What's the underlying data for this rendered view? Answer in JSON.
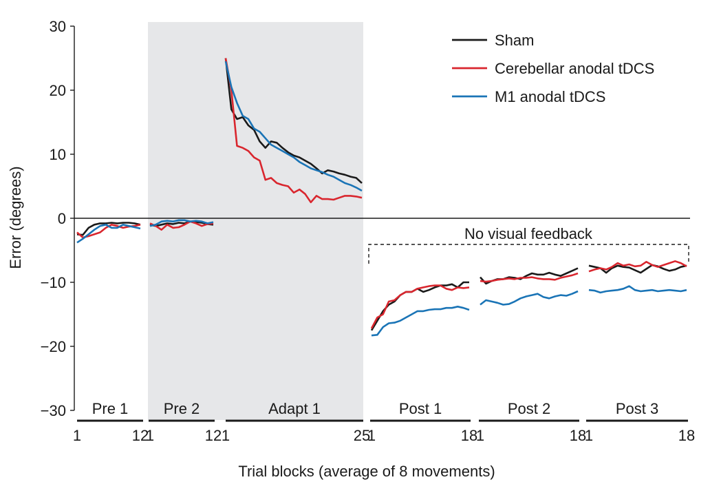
{
  "chart_data": {
    "type": "line",
    "ylabel": "Error (degrees)",
    "xlabel": "Trial blocks (average of 8 movements)",
    "ylim": [
      -30,
      30
    ],
    "yticks": [
      30,
      20,
      10,
      0,
      -10,
      -20,
      -30
    ],
    "ytick_labels": [
      "30",
      "20",
      "10",
      "0",
      "−10",
      "−20",
      "−30"
    ],
    "grid": false,
    "legend_position": "top-right",
    "annotation": "No visual feedback",
    "colors": {
      "Sham": "#1a1a1a",
      "Cerebellar anodal tDCS": "#d9262e",
      "M1 anodal tDCS": "#1a74b6",
      "shade": "#e6e7e9"
    },
    "phases": [
      {
        "name": "Pre 1",
        "blocks": 12,
        "tick_labels": [
          "1",
          "12"
        ],
        "shaded": false
      },
      {
        "name": "Pre 2",
        "blocks": 12,
        "tick_labels": [
          "1",
          "12"
        ],
        "shaded": true
      },
      {
        "name": "Adapt 1",
        "blocks": 25,
        "tick_labels": [
          "1",
          "25"
        ],
        "shaded": true
      },
      {
        "name": "Post 1",
        "blocks": 18,
        "tick_labels": [
          "1",
          "18"
        ],
        "shaded": false
      },
      {
        "name": "Post 2",
        "blocks": 18,
        "tick_labels": [
          "1",
          "18"
        ],
        "shaded": false
      },
      {
        "name": "Post 3",
        "blocks": 18,
        "tick_labels": [
          "1",
          "18"
        ],
        "shaded": false
      }
    ],
    "series": [
      {
        "name": "Sham",
        "phase_values": [
          [
            -2.5,
            -2.6,
            -1.5,
            -1.0,
            -0.8,
            -0.8,
            -0.7,
            -0.8,
            -0.7,
            -0.7,
            -0.8,
            -1.0
          ],
          [
            -1.0,
            -1.2,
            -1.0,
            -0.8,
            -0.9,
            -0.7,
            -0.8,
            -0.5,
            -0.6,
            -0.7,
            -0.9,
            -1.0
          ],
          [
            25.0,
            17.0,
            15.5,
            15.8,
            14.5,
            13.8,
            12.0,
            11.0,
            12.0,
            11.8,
            11.0,
            10.3,
            9.8,
            9.5,
            9.0,
            8.5,
            7.8,
            7.0,
            7.5,
            7.3,
            7.0,
            6.8,
            6.5,
            6.3,
            5.5
          ],
          [
            -17.5,
            -16.0,
            -14.5,
            -13.5,
            -13.0,
            -12.0,
            -11.5,
            -11.5,
            -11.0,
            -11.5,
            -11.2,
            -10.8,
            -10.5,
            -10.5,
            -10.3,
            -10.8,
            -10.0,
            -10.0
          ],
          [
            -9.2,
            -10.2,
            -9.8,
            -9.5,
            -9.5,
            -9.2,
            -9.3,
            -9.5,
            -9.0,
            -8.6,
            -8.8,
            -8.8,
            -8.5,
            -8.8,
            -9.0,
            -8.6,
            -8.2,
            -7.8
          ],
          [
            -7.4,
            -7.6,
            -7.8,
            -8.5,
            -7.8,
            -7.4,
            -7.6,
            -7.7,
            -8.1,
            -8.5,
            -7.9,
            -7.3,
            -7.5,
            -7.9,
            -8.2,
            -8.0,
            -7.6,
            -7.4
          ]
        ]
      },
      {
        "name": "Cerebellar anodal tDCS",
        "phase_values": [
          [
            -2.2,
            -3.0,
            -2.8,
            -2.5,
            -2.2,
            -1.5,
            -1.0,
            -1.2,
            -1.5,
            -1.3,
            -1.2,
            -1.0
          ],
          [
            -0.8,
            -1.2,
            -1.8,
            -1.0,
            -1.5,
            -1.4,
            -1.0,
            -0.5,
            -0.8,
            -1.2,
            -0.9,
            -0.8
          ],
          [
            25.0,
            20.0,
            11.3,
            11.0,
            10.5,
            9.5,
            9.0,
            6.0,
            6.3,
            5.5,
            5.2,
            5.0,
            4.0,
            4.5,
            3.8,
            2.5,
            3.5,
            3.0,
            3.0,
            2.9,
            3.2,
            3.5,
            3.5,
            3.4,
            3.2
          ],
          [
            -17.2,
            -15.5,
            -15.0,
            -13.0,
            -12.8,
            -12.0,
            -11.5,
            -11.5,
            -11.0,
            -10.8,
            -10.6,
            -10.5,
            -10.5,
            -11.0,
            -11.2,
            -10.8,
            -10.9,
            -10.8
          ],
          [
            -9.8,
            -9.9,
            -9.8,
            -9.6,
            -9.5,
            -9.4,
            -9.5,
            -9.3,
            -9.3,
            -9.2,
            -9.4,
            -9.5,
            -9.5,
            -9.6,
            -9.3,
            -9.1,
            -8.9,
            -8.6
          ],
          [
            -8.3,
            -8.0,
            -7.8,
            -8.0,
            -7.6,
            -7.0,
            -7.4,
            -7.2,
            -7.5,
            -7.4,
            -6.8,
            -7.3,
            -7.6,
            -7.3,
            -7.0,
            -6.7,
            -7.0,
            -7.5
          ]
        ]
      },
      {
        "name": "M1 anodal tDCS",
        "phase_values": [
          [
            -3.8,
            -3.2,
            -2.5,
            -1.8,
            -1.2,
            -1.0,
            -1.5,
            -1.5,
            -1.0,
            -1.2,
            -1.4,
            -1.6
          ],
          [
            -1.2,
            -1.0,
            -0.5,
            -0.4,
            -0.5,
            -0.3,
            -0.3,
            -0.5,
            -0.4,
            -0.5,
            -0.8,
            -0.6
          ],
          [
            24.5,
            20.5,
            18.0,
            16.0,
            15.5,
            14.0,
            13.5,
            12.5,
            11.5,
            11.0,
            10.5,
            10.0,
            9.5,
            8.8,
            8.3,
            7.8,
            7.5,
            7.2,
            6.8,
            6.5,
            6.0,
            5.5,
            5.2,
            4.8,
            4.3
          ],
          [
            -18.3,
            -18.2,
            -17.0,
            -16.4,
            -16.3,
            -16.0,
            -15.5,
            -15.0,
            -14.5,
            -14.5,
            -14.3,
            -14.2,
            -14.2,
            -14.0,
            -14.0,
            -13.8,
            -14.0,
            -14.3
          ],
          [
            -13.5,
            -12.8,
            -13.0,
            -13.2,
            -13.5,
            -13.4,
            -13.0,
            -12.5,
            -12.2,
            -12.0,
            -11.8,
            -12.3,
            -12.5,
            -12.2,
            -12.0,
            -12.1,
            -11.8,
            -11.4
          ],
          [
            -11.2,
            -11.3,
            -11.6,
            -11.4,
            -11.3,
            -11.2,
            -11.0,
            -10.6,
            -11.2,
            -11.4,
            -11.3,
            -11.2,
            -11.4,
            -11.3,
            -11.2,
            -11.3,
            -11.4,
            -11.2
          ]
        ]
      }
    ]
  }
}
